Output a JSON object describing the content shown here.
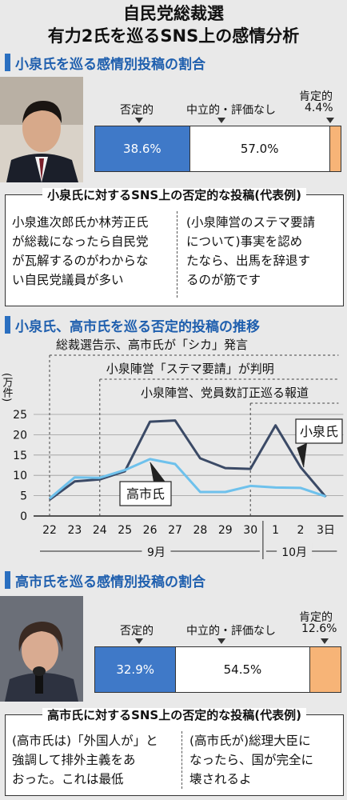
{
  "header": {
    "title": "自民党総裁選",
    "subtitle": "有力2氏を巡るSNS上の感情分析"
  },
  "section1": {
    "title": "小泉氏を巡る感情別投稿の割合",
    "labels": {
      "negative": "否定的",
      "neutral": "中立的・評価なし",
      "positive": "肯定的"
    },
    "values": {
      "negative": "38.6%",
      "neutral": "57.0%",
      "positive": "4.4%"
    }
  },
  "box1": {
    "title": "小泉氏に対するSNS上の否定的な投稿(代表例)",
    "quote_left": [
      "小泉進次郎氏か林芳正氏",
      "が総裁になったら自民党",
      "が瓦解するのがわからな",
      "い自民党議員が多い"
    ],
    "quote_right": [
      "(小泉陣営のステマ要請",
      "について)事実を認め",
      "たなら、出馬を辞退す",
      "るのが筋です"
    ]
  },
  "section2": {
    "title": "小泉氏、高市氏を巡る否定的投稿の推移"
  },
  "section3": {
    "title": "高市氏を巡る感情別投稿の割合",
    "labels": {
      "negative": "否定的",
      "neutral": "中立的・評価なし",
      "positive": "肯定的"
    },
    "values": {
      "negative": "32.9%",
      "neutral": "54.5%",
      "positive": "12.6%"
    }
  },
  "box2": {
    "title": "高市氏に対するSNS上の否定的な投稿(代表例)",
    "quote_left": [
      "(高市氏は)「外国人が」と",
      "強調して排外主義をあ",
      "おった。これは最低"
    ],
    "quote_right": [
      "(高市氏が)総理大臣に",
      "なったら、国が完全に",
      "壊されるよ"
    ]
  },
  "colors": {
    "accent": "#1f5fae",
    "negative": "#3f79c8",
    "positive": "#f7b477",
    "koizumi_line": "#3b4a66",
    "takaichi_line": "#6ec1ec"
  },
  "chart_data": [
    {
      "type": "bar",
      "title": "小泉氏を巡る感情別投稿の割合",
      "categories": [
        "否定的",
        "中立的・評価なし",
        "肯定的"
      ],
      "values": [
        38.6,
        57.0,
        4.4
      ],
      "unit": "%"
    },
    {
      "type": "line",
      "title": "小泉氏、高市氏を巡る否定的投稿の推移",
      "ylabel": "(万件)",
      "ylim": [
        0,
        25
      ],
      "yticks": [
        0,
        5,
        10,
        15,
        20,
        25
      ],
      "categories": [
        "22",
        "23",
        "24",
        "25",
        "26",
        "27",
        "28",
        "29",
        "30",
        "1",
        "2",
        "3日"
      ],
      "month_labels": [
        "9月",
        "10月"
      ],
      "series": [
        {
          "name": "小泉氏",
          "values": [
            4.0,
            8.5,
            9.0,
            11.0,
            23.2,
            23.5,
            14.2,
            11.8,
            11.6,
            22.3,
            12.0,
            4.7
          ]
        },
        {
          "name": "高市氏",
          "values": [
            4.3,
            9.5,
            9.4,
            11.3,
            14.0,
            12.8,
            5.9,
            5.9,
            7.4,
            7.0,
            6.9,
            4.8
          ]
        }
      ],
      "annotations": [
        {
          "x": "22",
          "text": "総裁選告示、高市氏が「シカ」発言"
        },
        {
          "x": "24",
          "text": "小泉陣営「ステマ要請」が判明"
        },
        {
          "x": "30",
          "text": "小泉陣営、党員数訂正巡る報道"
        }
      ],
      "grid": true
    },
    {
      "type": "bar",
      "title": "高市氏を巡る感情別投稿の割合",
      "categories": [
        "否定的",
        "中立的・評価なし",
        "肯定的"
      ],
      "values": [
        32.9,
        54.5,
        12.6
      ],
      "unit": "%"
    }
  ]
}
